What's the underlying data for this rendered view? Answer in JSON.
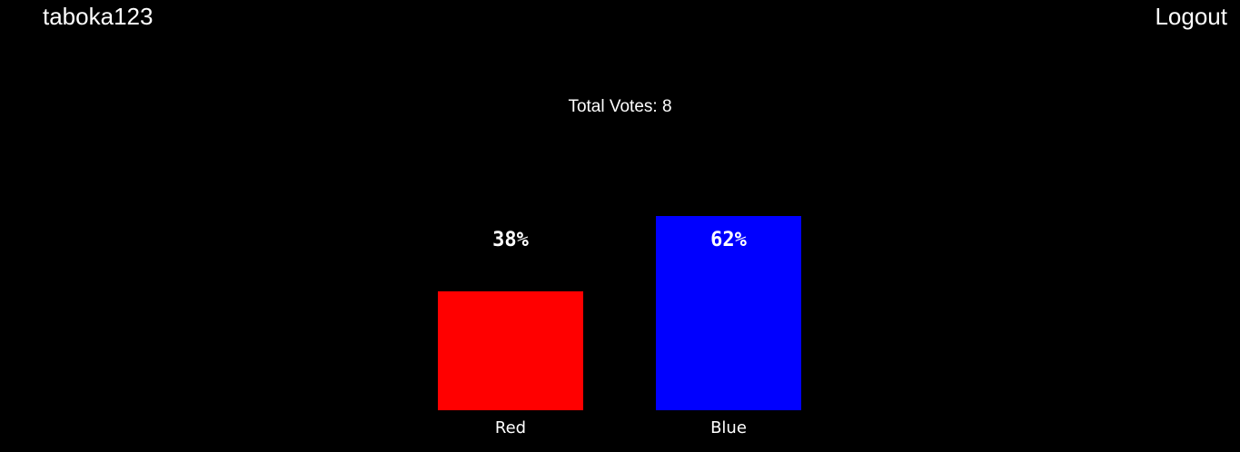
{
  "header": {
    "username": "taboka123",
    "logout_label": "Logout"
  },
  "summary": {
    "total_votes_text": "Total Votes: 8",
    "total_votes": 8
  },
  "chart_data": {
    "type": "bar",
    "categories": [
      "Red",
      "Blue"
    ],
    "values": [
      38,
      62
    ],
    "value_labels": [
      "38%",
      "62%"
    ],
    "colors": [
      "#ff0000",
      "#0000ff"
    ],
    "ylim": [
      0,
      100
    ]
  }
}
